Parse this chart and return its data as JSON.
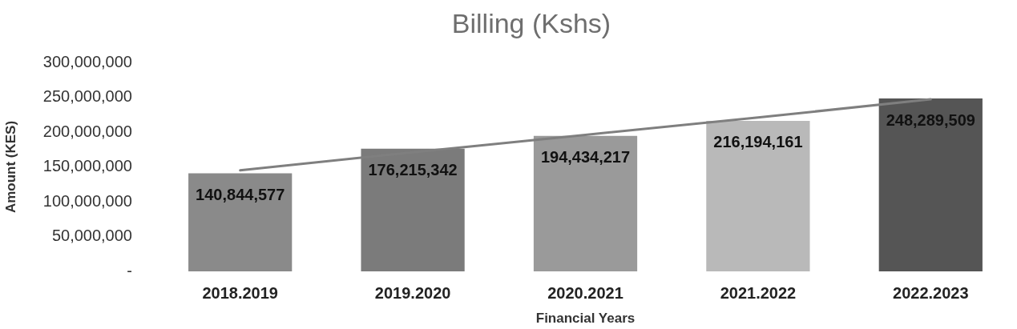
{
  "chart_data": {
    "type": "bar",
    "title": "Billing (Kshs)",
    "xlabel": "Financial Years",
    "ylabel": "Amount (KES)",
    "categories": [
      "2018.2019",
      "2019.2020",
      "2020.2021",
      "2021.2022",
      "2022.2023"
    ],
    "series": [
      {
        "colors": [
          "#8a8a8a",
          "#7b7b7b",
          "#9a9a9a",
          "#b9b9b9",
          "#555555"
        ],
        "values": [
          140844577,
          176215342,
          194434217,
          216194161,
          248289509
        ],
        "value_labels": [
          "140,844,577",
          "176,215,342",
          "194,434,217",
          "216,194,161",
          "248,289,509"
        ]
      },
      {
        "type": "line",
        "color": "#7f7f7f",
        "x": [
          "2018.2019",
          "2019.2020",
          "2020.2021",
          "2021.2022",
          "2022.2023"
        ],
        "values": [
          145000000,
          171000000,
          196000000,
          221000000,
          247000000
        ]
      }
    ],
    "ylim": [
      0,
      300000000
    ],
    "yticks": [
      {
        "value": 0,
        "label": "-"
      },
      {
        "value": 50000000,
        "label": "50,000,000"
      },
      {
        "value": 100000000,
        "label": "100,000,000"
      },
      {
        "value": 150000000,
        "label": "150,000,000"
      },
      {
        "value": 200000000,
        "label": "200,000,000"
      },
      {
        "value": 250000000,
        "label": "250,000,000"
      },
      {
        "value": 300000000,
        "label": "300,000,000"
      }
    ]
  }
}
